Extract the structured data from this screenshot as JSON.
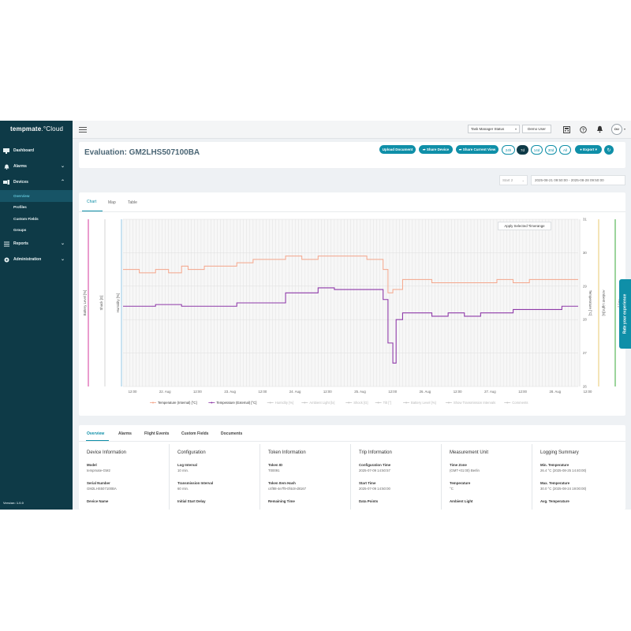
{
  "app": {
    "logo_bold": "tempmate",
    "logo_thin": ".°Cloud",
    "version": "Version: 1.0.0"
  },
  "sidebar": {
    "items": [
      {
        "label": "Dashboard",
        "icon": "dashboard-icon"
      },
      {
        "label": "Alarms",
        "icon": "bell-icon",
        "chevron": "⌄"
      },
      {
        "label": "Devices",
        "icon": "devices-icon",
        "chevron": "⌃"
      },
      {
        "label": "Reports",
        "icon": "reports-icon",
        "chevron": "⌄"
      },
      {
        "label": "Administration",
        "icon": "gear-icon",
        "chevron": "⌄"
      }
    ],
    "sub_items": [
      {
        "label": "Overview",
        "active": true
      },
      {
        "label": "Profiles"
      },
      {
        "label": "Custom Fields"
      },
      {
        "label": "Groups"
      }
    ]
  },
  "topbar": {
    "task_manager": "Task Manager Status",
    "user_button": "Demo User",
    "avatar": "DU"
  },
  "header": {
    "title": "Evaluation: GM2LHS507100BA",
    "buttons": {
      "upload": "Upload Document",
      "share_device": "Share Device",
      "share_view": "Share Current View",
      "export": "Export"
    },
    "ranges": [
      "24h",
      "7d",
      "14d",
      "30d",
      "All"
    ],
    "active_range": "7d"
  },
  "filters": {
    "start": "Start 2",
    "date_range": "2025-08-21 09:50:00 - 2025-08-28 09:50:00"
  },
  "chart_tabs": [
    "Chart",
    "Map",
    "Table"
  ],
  "apply_button": "Apply Selected Timerange",
  "feedback": "Rate your experience",
  "chart_data": {
    "type": "line",
    "x_ticks": [
      "12:00",
      "22. Aug",
      "12:00",
      "23. Aug",
      "12:00",
      "24. Aug",
      "12:00",
      "25. Aug",
      "12:00",
      "26. Aug",
      "12:00",
      "27. Aug",
      "12:00",
      "28. Aug",
      "12:00"
    ],
    "left_axes": [
      "Battery Level [%]",
      "Shock [G]",
      "Humidity [%]"
    ],
    "right_axes": [
      "Temperature [°C]",
      "Ambient Light [lx]",
      "Tilt [°]"
    ],
    "y_right_ticks": [
      31,
      30,
      29,
      28,
      27,
      26
    ],
    "ylim": [
      26,
      31
    ],
    "colors": {
      "internal": "#f4a58a",
      "external": "#8e3aa8",
      "battery": "#d63a9e",
      "light": "#e9c870",
      "tilt": "#3aaa3a",
      "humidity": "#4aa0d0"
    },
    "series": [
      {
        "name": "Temperature (Internal) [°C]",
        "x": [
          0,
          0.5,
          1,
          1.4,
          1.8,
          2,
          2.5,
          3,
          3.5,
          4,
          4.5,
          5,
          5.5,
          6,
          6.5,
          7,
          7.5,
          8,
          8.15,
          8.3,
          8.6,
          9,
          9.5,
          10,
          10.5,
          11,
          11.5,
          12,
          12.5,
          13,
          13.5,
          14
        ],
        "values": [
          29.5,
          29.4,
          29.5,
          29.4,
          29.6,
          29.5,
          29.6,
          29.6,
          29.7,
          29.8,
          29.8,
          29.9,
          29.8,
          29.9,
          29.9,
          29.9,
          29.8,
          29.5,
          28.8,
          28.9,
          29.2,
          29.2,
          29.1,
          29.1,
          29.1,
          29.1,
          29.2,
          29.1,
          29.2,
          29.2,
          29.2,
          29.2
        ]
      },
      {
        "name": "Temperature (External) [°C]",
        "x": [
          0,
          0.5,
          1,
          1.5,
          1.8,
          2,
          2.5,
          3,
          3.5,
          4,
          4.5,
          5,
          5.5,
          6,
          6.5,
          7,
          7.5,
          8,
          8.15,
          8.3,
          8.4,
          8.6,
          9,
          9.5,
          10,
          10.5,
          11,
          11.5,
          12,
          12.5,
          13,
          13.5,
          14
        ],
        "values": [
          28.4,
          28.4,
          28.45,
          28.45,
          28.4,
          28.4,
          28.4,
          28.4,
          28.5,
          28.5,
          28.5,
          28.8,
          28.8,
          28.95,
          28.9,
          28.9,
          28.9,
          28.6,
          27.3,
          26.7,
          28.0,
          28.2,
          28.2,
          28.1,
          28.2,
          28.1,
          28.2,
          28.2,
          28.3,
          28.3,
          28.3,
          28.4,
          28.4
        ]
      }
    ],
    "legend": [
      {
        "label": "Temperature (Internal) [°C]",
        "active": true
      },
      {
        "label": "Temperature (External) [°C]",
        "active": true
      },
      {
        "label": "Humidity [%]",
        "active": false
      },
      {
        "label": "Ambient Light [lx]",
        "active": false
      },
      {
        "label": "Shock [G]",
        "active": false
      },
      {
        "label": "Tilt [°]",
        "active": false
      },
      {
        "label": "Battery Level [%]",
        "active": false
      },
      {
        "label": "Show Transmission Intervals",
        "active": false
      },
      {
        "label": "Comments",
        "active": false
      }
    ]
  },
  "info": {
    "tabs": [
      "Overview",
      "Alarms",
      "Flight Events",
      "Custom Fields",
      "Documents"
    ],
    "columns": [
      {
        "title": "Device Information",
        "fields": [
          {
            "label": "Model",
            "value": "tempmate-GM2"
          },
          {
            "label": "Serial Number",
            "value": "GM2LHS507100BA"
          },
          {
            "label": "Device Name",
            "value": ""
          }
        ]
      },
      {
        "title": "Configuration",
        "fields": [
          {
            "label": "Log Interval",
            "value": "10 min."
          },
          {
            "label": "Transmission Interval",
            "value": "60 min."
          },
          {
            "label": "Initial Start Delay",
            "value": ""
          }
        ]
      },
      {
        "title": "Token Information",
        "fields": [
          {
            "label": "Token ID",
            "value": "T00091"
          },
          {
            "label": "Token Item Hash",
            "value": "c4f88-4e7f9-0f4c8-d8167"
          },
          {
            "label": "Remaining Time",
            "value": ""
          }
        ]
      },
      {
        "title": "Trip Information",
        "fields": [
          {
            "label": "Configuration Time",
            "value": "2025-07-09 14:50:57"
          },
          {
            "label": "Start Time",
            "value": "2025-07-09 14:50:00"
          },
          {
            "label": "Data Points",
            "value": ""
          }
        ]
      },
      {
        "title": "Measurement Unit",
        "fields": [
          {
            "label": "Time Zone",
            "value": "(GMT+01:00) Berlin"
          },
          {
            "label": "Temperature",
            "value": "°C"
          },
          {
            "label": "Ambient Light",
            "value": ""
          }
        ]
      },
      {
        "title": "Logging Summary",
        "fields": [
          {
            "label": "Min. Temperature",
            "value": "26.4 °C (2025-08-25 14:40:00)"
          },
          {
            "label": "Max. Temperature",
            "value": "30.0 °C (2025-08-24 19:00:00)"
          },
          {
            "label": "Avg. Temperature",
            "value": ""
          }
        ]
      }
    ]
  }
}
